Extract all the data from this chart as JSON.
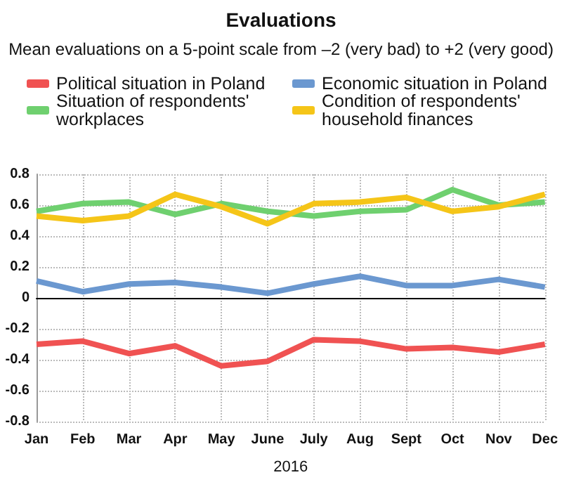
{
  "chart_data": {
    "type": "line",
    "title": "Evaluations",
    "subtitle": "Mean evaluations on a 5-point scale from –2 (very bad) to +2 (very good)",
    "xlabel": "2016",
    "categories": [
      "Jan",
      "Feb",
      "Mar",
      "Apr",
      "May",
      "June",
      "July",
      "Aug",
      "Sept",
      "Oct",
      "Nov",
      "Dec"
    ],
    "series": [
      {
        "name": "Political situation in Poland",
        "color": "#f05252",
        "values": [
          -0.3,
          -0.28,
          -0.36,
          -0.31,
          -0.44,
          -0.41,
          -0.27,
          -0.28,
          -0.33,
          -0.32,
          -0.35,
          -0.3
        ]
      },
      {
        "name": "Economic situation in Poland",
        "color": "#6b98d0",
        "values": [
          0.11,
          0.04,
          0.09,
          0.1,
          0.07,
          0.03,
          0.09,
          0.14,
          0.08,
          0.08,
          0.12,
          0.07
        ]
      },
      {
        "name": "Situation of respondents' workplaces",
        "color": "#6fd06f",
        "values": [
          0.56,
          0.61,
          0.62,
          0.54,
          0.61,
          0.56,
          0.53,
          0.56,
          0.57,
          0.7,
          0.6,
          0.62
        ]
      },
      {
        "name": "Condition of respondents' household finances",
        "color": "#f5c518",
        "values": [
          0.53,
          0.5,
          0.53,
          0.67,
          0.59,
          0.48,
          0.61,
          0.62,
          0.65,
          0.56,
          0.59,
          0.67
        ]
      }
    ],
    "ylim": [
      -0.8,
      0.8
    ],
    "yticks": [
      -0.8,
      -0.6,
      -0.4,
      -0.2,
      0,
      0.2,
      0.4,
      0.6,
      0.8
    ],
    "grid": true,
    "legend": "top",
    "marker": "none",
    "line_style": "solid"
  }
}
